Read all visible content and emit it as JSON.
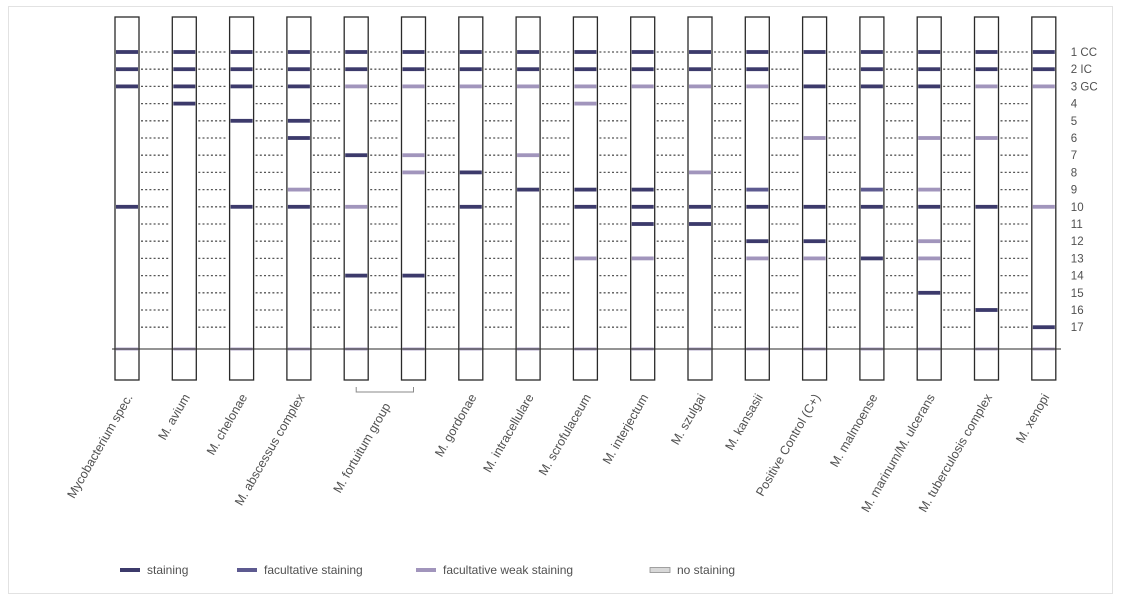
{
  "colors": {
    "staining": "#3c3a6b",
    "facultative": "#5d5a90",
    "weak": "#a195bc",
    "none": "#d8d8d8",
    "outline": "#2a2a2a",
    "dots": "#555555",
    "text": "#505050"
  },
  "row_labels": [
    "1 CC",
    "2 IC",
    "3 GC",
    "4",
    "5",
    "6",
    "7",
    "8",
    "9",
    "10",
    "11",
    "12",
    "13",
    "14",
    "15",
    "16",
    "17"
  ],
  "group_brackets": [
    {
      "label": "M. fortuitum group",
      "from_strip": 4,
      "to_strip": 5
    }
  ],
  "strips": [
    {
      "label": "Mycobacterium spec.",
      "bands": [
        [
          1,
          "s"
        ],
        [
          2,
          "s"
        ],
        [
          3,
          "s"
        ],
        [
          10,
          "s"
        ]
      ]
    },
    {
      "label": "M. avium",
      "bands": [
        [
          1,
          "s"
        ],
        [
          2,
          "s"
        ],
        [
          3,
          "s"
        ],
        [
          4,
          "s"
        ]
      ]
    },
    {
      "label": "M. chelonae",
      "bands": [
        [
          1,
          "s"
        ],
        [
          2,
          "s"
        ],
        [
          3,
          "s"
        ],
        [
          5,
          "s"
        ],
        [
          10,
          "s"
        ]
      ]
    },
    {
      "label": "M. abscessus complex",
      "bands": [
        [
          1,
          "s"
        ],
        [
          2,
          "s"
        ],
        [
          3,
          "s"
        ],
        [
          5,
          "s"
        ],
        [
          6,
          "s"
        ],
        [
          9,
          "w"
        ],
        [
          10,
          "s"
        ]
      ]
    },
    {
      "label": "",
      "bands": [
        [
          1,
          "s"
        ],
        [
          2,
          "s"
        ],
        [
          3,
          "w"
        ],
        [
          7,
          "s"
        ],
        [
          10,
          "w"
        ],
        [
          14,
          "s"
        ]
      ]
    },
    {
      "label": "",
      "bands": [
        [
          1,
          "s"
        ],
        [
          2,
          "s"
        ],
        [
          3,
          "w"
        ],
        [
          7,
          "w"
        ],
        [
          8,
          "w"
        ],
        [
          14,
          "s"
        ]
      ]
    },
    {
      "label": "M. gordonae",
      "bands": [
        [
          1,
          "s"
        ],
        [
          2,
          "s"
        ],
        [
          3,
          "w"
        ],
        [
          8,
          "s"
        ],
        [
          10,
          "s"
        ]
      ]
    },
    {
      "label": "M. intracellulare",
      "bands": [
        [
          1,
          "s"
        ],
        [
          2,
          "s"
        ],
        [
          3,
          "w"
        ],
        [
          7,
          "w"
        ],
        [
          9,
          "s"
        ]
      ]
    },
    {
      "label": "M. scrofulaceum",
      "bands": [
        [
          1,
          "s"
        ],
        [
          2,
          "s"
        ],
        [
          3,
          "w"
        ],
        [
          4,
          "w"
        ],
        [
          9,
          "s"
        ],
        [
          10,
          "s"
        ],
        [
          13,
          "w"
        ]
      ]
    },
    {
      "label": "M. interjectum",
      "bands": [
        [
          1,
          "s"
        ],
        [
          2,
          "s"
        ],
        [
          3,
          "w"
        ],
        [
          9,
          "s"
        ],
        [
          10,
          "s"
        ],
        [
          11,
          "s"
        ],
        [
          13,
          "w"
        ]
      ]
    },
    {
      "label": "M. szulgai",
      "bands": [
        [
          1,
          "s"
        ],
        [
          2,
          "s"
        ],
        [
          3,
          "w"
        ],
        [
          8,
          "w"
        ],
        [
          10,
          "s"
        ],
        [
          11,
          "s"
        ]
      ]
    },
    {
      "label": "M. kansasii",
      "bands": [
        [
          1,
          "s"
        ],
        [
          2,
          "s"
        ],
        [
          3,
          "w"
        ],
        [
          9,
          "f"
        ],
        [
          10,
          "s"
        ],
        [
          12,
          "s"
        ],
        [
          13,
          "w"
        ]
      ]
    },
    {
      "label": "Positive Control (C+)",
      "bands": [
        [
          1,
          "s"
        ],
        [
          3,
          "s"
        ],
        [
          6,
          "w"
        ],
        [
          10,
          "s"
        ],
        [
          12,
          "s"
        ],
        [
          13,
          "w"
        ]
      ]
    },
    {
      "label": "M. malmoense",
      "bands": [
        [
          1,
          "s"
        ],
        [
          2,
          "s"
        ],
        [
          3,
          "s"
        ],
        [
          9,
          "f"
        ],
        [
          10,
          "s"
        ],
        [
          13,
          "s"
        ]
      ]
    },
    {
      "label": "M. marinum/M. ulcerans",
      "bands": [
        [
          1,
          "s"
        ],
        [
          2,
          "s"
        ],
        [
          3,
          "s"
        ],
        [
          6,
          "w"
        ],
        [
          9,
          "w"
        ],
        [
          10,
          "s"
        ],
        [
          12,
          "w"
        ],
        [
          13,
          "w"
        ],
        [
          15,
          "s"
        ]
      ]
    },
    {
      "label": "M. tuberculosis complex",
      "bands": [
        [
          1,
          "s"
        ],
        [
          2,
          "s"
        ],
        [
          3,
          "w"
        ],
        [
          6,
          "w"
        ],
        [
          10,
          "s"
        ],
        [
          16,
          "s"
        ]
      ]
    },
    {
      "label": "M. xenopi",
      "bands": [
        [
          1,
          "s"
        ],
        [
          2,
          "s"
        ],
        [
          3,
          "w"
        ],
        [
          10,
          "w"
        ],
        [
          17,
          "s"
        ]
      ]
    }
  ],
  "legend": [
    {
      "key": "s",
      "label": "staining"
    },
    {
      "key": "f",
      "label": "facultative staining"
    },
    {
      "key": "w",
      "label": "facultative weak staining"
    },
    {
      "key": "n",
      "label": "no staining"
    }
  ]
}
